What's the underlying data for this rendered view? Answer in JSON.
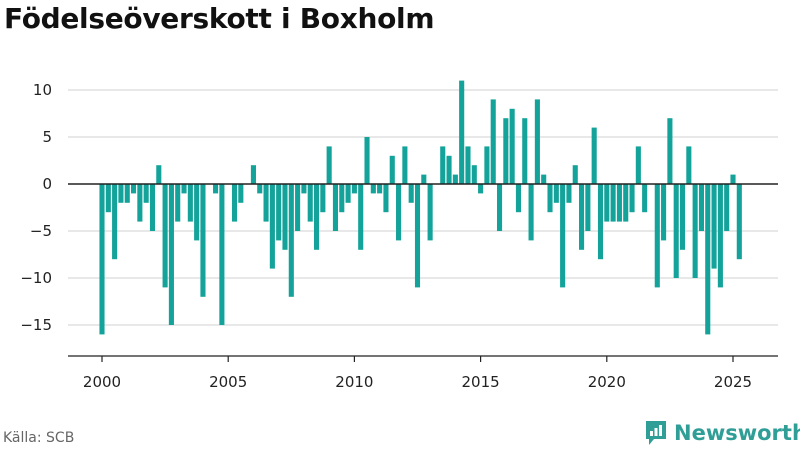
{
  "title": "Födelseöverskott i Boxholm",
  "source": "Källa: SCB",
  "brand": {
    "name": "Newsworthy",
    "icon": "newsworthy-logo-icon"
  },
  "colors": {
    "bar": "#14a39a",
    "zero_line": "#222222",
    "grid": "#d9d9d9",
    "brand": "#2f9e97"
  },
  "chart_data": {
    "type": "bar",
    "title": "Födelseöverskott i Boxholm",
    "xlabel": "",
    "ylabel": "",
    "grid": true,
    "ylim": [
      -17,
      13
    ],
    "xlim": [
      1999,
      2026.8
    ],
    "y_ticks": [
      10,
      5,
      0,
      -5,
      -10,
      -15
    ],
    "y_tick_labels": [
      "10",
      "5",
      "0",
      "−5",
      "−10",
      "−15"
    ],
    "x_ticks": [
      2000,
      2005,
      2010,
      2015,
      2020,
      2025
    ],
    "x_tick_labels": [
      "2000",
      "2005",
      "2010",
      "2015",
      "2020",
      "2025"
    ],
    "series": [
      {
        "values": [
          -16,
          -3,
          -8,
          -2,
          -2,
          -1,
          -4,
          -2,
          -5,
          2,
          -11,
          -15,
          -4,
          -1,
          -4,
          -6,
          -12,
          0,
          -1,
          -15,
          0,
          -4,
          -2,
          0,
          2,
          -1,
          -4,
          -9,
          -6,
          -7,
          -12,
          -5,
          -1,
          -4,
          -7,
          -3,
          4,
          -5,
          -3,
          -2,
          -1,
          -7,
          5,
          -1,
          -1,
          -3,
          3,
          -6,
          4,
          -2,
          -11,
          1,
          -6,
          0,
          4,
          3,
          1,
          11,
          4,
          2,
          -1,
          4,
          9,
          -5,
          7,
          8,
          -3,
          7,
          -6,
          9,
          1,
          -3,
          -2,
          -11,
          -2,
          2,
          -7,
          -5,
          6,
          -8,
          -4,
          -4,
          -4,
          -4,
          -3,
          4,
          -3,
          0,
          -11,
          -6,
          7,
          -10,
          -7,
          4,
          -10,
          -5,
          -16,
          -9,
          -11,
          -5,
          1,
          -8
        ]
      }
    ]
  }
}
